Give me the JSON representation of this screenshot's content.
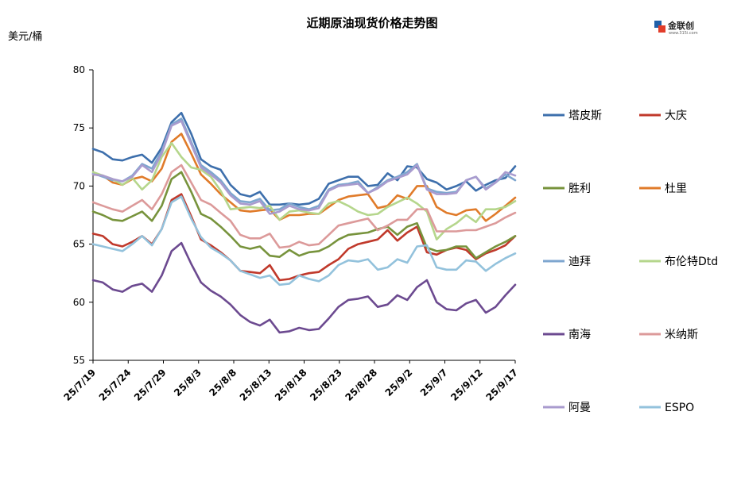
{
  "logo": {
    "text": "金联创",
    "subtext": "www.315i.com"
  },
  "chart_data": {
    "type": "line",
    "title": "近期原油现货价格走势图",
    "ylabel": "美元/桶",
    "xlabel": "",
    "ylim": [
      55,
      80
    ],
    "yticks": [
      55,
      60,
      65,
      70,
      75,
      80
    ],
    "xtick_labels": [
      "25/7/19",
      "25/7/24",
      "25/7/29",
      "25/8/3",
      "25/8/8",
      "25/8/13",
      "25/8/18",
      "25/8/23",
      "25/8/28",
      "25/9/2",
      "25/9/7",
      "25/9/12",
      "25/9/17"
    ],
    "x": [
      "7/19",
      "7/21",
      "7/22",
      "7/23",
      "7/24",
      "7/25",
      "7/28",
      "7/29",
      "7/30",
      "7/31",
      "8/1",
      "8/4",
      "8/5",
      "8/6",
      "8/7",
      "8/8",
      "8/11",
      "8/12",
      "8/13",
      "8/14",
      "8/15",
      "8/18",
      "8/19",
      "8/20",
      "8/21",
      "8/22",
      "8/25",
      "8/26",
      "8/27",
      "8/28",
      "8/29",
      "9/1",
      "9/2",
      "9/3",
      "9/4",
      "9/5",
      "9/8",
      "9/9",
      "9/10",
      "9/11",
      "9/12",
      "9/15",
      "9/16",
      "9/17"
    ],
    "grid": false,
    "legend": "right",
    "series": [
      {
        "name": "塔皮斯",
        "color": "#3d6fac",
        "values": [
          73.2,
          72.9,
          72.3,
          72.2,
          72.5,
          72.7,
          72.0,
          73.3,
          75.5,
          76.3,
          74.5,
          72.3,
          71.7,
          71.4,
          70.1,
          69.3,
          69.1,
          69.5,
          68.4,
          68.4,
          68.5,
          68.4,
          68.5,
          68.9,
          70.2,
          70.5,
          70.8,
          70.8,
          70.0,
          70.1,
          71.1,
          70.5,
          71.7,
          71.6,
          70.6,
          70.3,
          69.7,
          70.0,
          70.4,
          69.6,
          70.1,
          70.5,
          70.7,
          71.7
        ]
      },
      {
        "name": "大庆",
        "color": "#c0392b",
        "values": [
          65.9,
          65.7,
          65.0,
          64.8,
          65.2,
          65.7,
          65.0,
          66.3,
          68.8,
          69.3,
          67.4,
          65.4,
          64.9,
          64.3,
          63.6,
          62.7,
          62.6,
          62.5,
          63.2,
          61.9,
          62.0,
          62.3,
          62.5,
          62.6,
          63.2,
          63.7,
          64.6,
          65.0,
          65.2,
          65.4,
          66.2,
          65.3,
          66.0,
          66.5,
          64.3,
          64.1,
          64.5,
          64.7,
          64.5,
          63.7,
          64.2,
          64.5,
          64.9,
          65.7
        ]
      },
      {
        "name": "胜利",
        "color": "#77933c",
        "values": [
          67.8,
          67.5,
          67.1,
          67.0,
          67.4,
          67.8,
          67.0,
          68.3,
          70.6,
          71.2,
          69.5,
          67.6,
          67.2,
          66.5,
          65.7,
          64.8,
          64.6,
          64.8,
          64.0,
          63.9,
          64.5,
          64.0,
          64.3,
          64.4,
          64.8,
          65.4,
          65.8,
          65.9,
          66.0,
          66.3,
          66.5,
          65.8,
          66.5,
          66.8,
          64.7,
          64.4,
          64.5,
          64.8,
          64.8,
          63.8,
          64.3,
          64.8,
          65.2,
          65.7
        ]
      },
      {
        "name": "杜里",
        "color": "#e07b2a",
        "values": [
          71.0,
          70.9,
          70.3,
          70.1,
          70.6,
          70.8,
          70.4,
          71.5,
          73.8,
          74.5,
          72.8,
          71.0,
          70.2,
          69.3,
          68.6,
          67.9,
          67.8,
          67.9,
          68.0,
          67.1,
          67.5,
          67.5,
          67.6,
          67.6,
          68.2,
          68.8,
          69.1,
          69.2,
          69.3,
          68.1,
          68.3,
          69.2,
          68.9,
          70.0,
          70.0,
          68.2,
          67.7,
          67.5,
          67.9,
          68.0,
          67.0,
          67.6,
          68.3,
          69.0
        ]
      },
      {
        "name": "迪拜",
        "color": "#7ea6cf",
        "values": [
          71.1,
          70.8,
          70.5,
          70.4,
          70.9,
          71.9,
          71.5,
          73.0,
          75.3,
          75.8,
          73.8,
          71.8,
          71.2,
          70.5,
          69.4,
          68.7,
          68.6,
          68.9,
          67.9,
          68.0,
          68.5,
          68.2,
          68.0,
          68.3,
          69.7,
          70.1,
          70.2,
          70.4,
          69.4,
          69.9,
          70.5,
          70.8,
          71.2,
          71.9,
          69.8,
          69.5,
          69.4,
          69.5,
          70.5,
          70.8,
          69.8,
          70.3,
          71.0,
          70.5
        ]
      },
      {
        "name": "布伦特Dtd",
        "color": "#b5d68c",
        "values": [
          71.2,
          70.9,
          70.6,
          70.1,
          70.7,
          69.7,
          70.5,
          72.5,
          73.7,
          72.5,
          71.6,
          71.4,
          70.8,
          69.6,
          68.0,
          68.1,
          68.2,
          68.1,
          68.3,
          67.1,
          67.8,
          67.9,
          67.7,
          67.6,
          68.5,
          68.7,
          68.3,
          67.8,
          67.5,
          67.6,
          68.2,
          68.6,
          69.0,
          68.5,
          67.8,
          65.4,
          66.3,
          66.8,
          67.5,
          66.9,
          68.0,
          68.0,
          68.2,
          68.7
        ]
      },
      {
        "name": "南海",
        "color": "#6c4a90",
        "values": [
          61.9,
          61.7,
          61.1,
          60.9,
          61.4,
          61.6,
          60.9,
          62.3,
          64.4,
          65.1,
          63.3,
          61.7,
          61.0,
          60.5,
          59.8,
          58.9,
          58.3,
          58.0,
          58.5,
          57.4,
          57.5,
          57.8,
          57.6,
          57.7,
          58.6,
          59.6,
          60.2,
          60.3,
          60.5,
          59.6,
          59.8,
          60.6,
          60.2,
          61.3,
          61.9,
          60.0,
          59.4,
          59.3,
          59.9,
          60.2,
          59.1,
          59.6,
          60.6,
          61.5
        ]
      },
      {
        "name": "米纳斯",
        "color": "#dc9a9a",
        "values": [
          68.6,
          68.3,
          68.0,
          67.8,
          68.3,
          68.8,
          68.0,
          69.3,
          71.2,
          71.8,
          70.3,
          68.8,
          68.4,
          67.7,
          67.0,
          65.8,
          65.5,
          65.5,
          65.9,
          64.7,
          64.8,
          65.2,
          64.9,
          65.0,
          65.8,
          66.6,
          66.8,
          67.0,
          67.2,
          66.2,
          66.6,
          67.1,
          67.1,
          68.0,
          68.0,
          66.1,
          66.1,
          66.1,
          66.2,
          66.2,
          66.5,
          66.8,
          67.3,
          67.7
        ]
      },
      {
        "name": "阿曼",
        "color": "#a99bce",
        "values": [
          71.0,
          70.9,
          70.6,
          70.4,
          70.8,
          71.8,
          71.2,
          72.8,
          75.2,
          75.6,
          73.6,
          71.6,
          71.0,
          70.3,
          69.2,
          68.5,
          68.4,
          68.7,
          67.6,
          67.8,
          68.3,
          68.0,
          67.9,
          68.1,
          69.6,
          70.0,
          70.1,
          70.2,
          69.4,
          69.8,
          70.4,
          70.7,
          71.0,
          71.8,
          69.7,
          69.3,
          69.3,
          69.4,
          70.5,
          70.8,
          69.7,
          70.3,
          71.2,
          70.9
        ]
      },
      {
        "name": "ESPO",
        "color": "#93c2dc",
        "values": [
          65.0,
          64.8,
          64.6,
          64.4,
          65.0,
          65.7,
          64.9,
          66.3,
          68.6,
          69.1,
          67.2,
          65.6,
          64.7,
          64.2,
          63.6,
          62.7,
          62.4,
          62.1,
          62.3,
          61.5,
          61.6,
          62.3,
          62.0,
          61.8,
          62.3,
          63.2,
          63.6,
          63.5,
          63.7,
          62.8,
          63.0,
          63.7,
          63.4,
          64.8,
          64.9,
          63.0,
          62.8,
          62.8,
          63.6,
          63.5,
          62.7,
          63.3,
          63.8,
          64.2
        ]
      }
    ]
  }
}
